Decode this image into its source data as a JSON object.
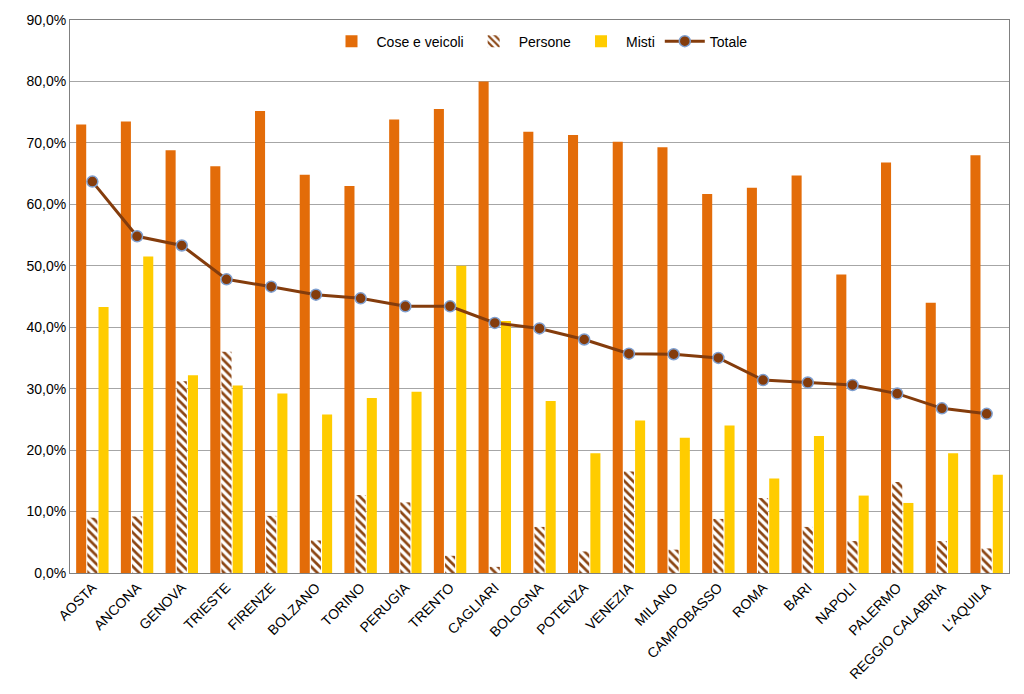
{
  "chart_data": {
    "type": "bar",
    "categories": [
      "AOSTA",
      "ANCONA",
      "GENOVA",
      "TRIESTE",
      "FIRENZE",
      "BOLZANO",
      "TORINO",
      "PERUGIA",
      "TRENTO",
      "CAGLIARI",
      "BOLOGNA",
      "POTENZA",
      "VENEZIA",
      "MILANO",
      "CAMPOBASSO",
      "ROMA",
      "BARI",
      "NAPOLI",
      "PALERMO",
      "REGGIO CALABRIA",
      "L'AQUILA"
    ],
    "series": [
      {
        "name": "Cose e veicoli",
        "type": "bar",
        "color": "#e36c09",
        "values": [
          73.0,
          73.5,
          68.8,
          66.2,
          75.2,
          64.8,
          63.0,
          73.8,
          75.5,
          80.0,
          71.8,
          71.3,
          70.2,
          69.3,
          61.7,
          62.7,
          64.7,
          48.6,
          66.8,
          44.0,
          68.0
        ]
      },
      {
        "name": "Persone",
        "type": "bar",
        "color": "#8b4513",
        "marker": "hatch",
        "values": [
          9.0,
          9.2,
          31.2,
          36.0,
          9.3,
          5.3,
          12.7,
          11.5,
          2.8,
          1.0,
          7.5,
          3.5,
          16.5,
          3.8,
          8.8,
          12.2,
          7.5,
          5.2,
          14.8,
          5.2,
          4.0
        ]
      },
      {
        "name": "Misti",
        "type": "bar",
        "color": "#ffcc00",
        "values": [
          43.3,
          51.5,
          32.2,
          30.5,
          29.2,
          25.8,
          28.5,
          29.5,
          50.0,
          41.0,
          28.0,
          19.5,
          24.8,
          22.0,
          24.0,
          15.4,
          22.3,
          12.6,
          11.4,
          19.5,
          16.0
        ]
      },
      {
        "name": "Totale",
        "type": "line",
        "color": "#843c0c",
        "marker": "circle",
        "values": [
          63.7,
          54.8,
          53.3,
          47.8,
          46.6,
          45.3,
          44.7,
          43.4,
          43.4,
          40.7,
          39.8,
          38.0,
          35.7,
          35.6,
          35.0,
          31.4,
          31.0,
          30.6,
          29.2,
          26.8,
          25.9
        ]
      }
    ],
    "ylim": [
      0,
      90
    ],
    "yticks": [
      {
        "value": 0,
        "label": "0,0%"
      },
      {
        "value": 10,
        "label": "10,0%"
      },
      {
        "value": 20,
        "label": "20,0%"
      },
      {
        "value": 30,
        "label": "30,0%"
      },
      {
        "value": 40,
        "label": "40,0%"
      },
      {
        "value": 50,
        "label": "50,0%"
      },
      {
        "value": 60,
        "label": "60,0%"
      },
      {
        "value": 70,
        "label": "70,0%"
      },
      {
        "value": 80,
        "label": "80,0%"
      },
      {
        "value": 90,
        "label": "90,0%"
      }
    ],
    "grid": true,
    "legend": "top"
  }
}
